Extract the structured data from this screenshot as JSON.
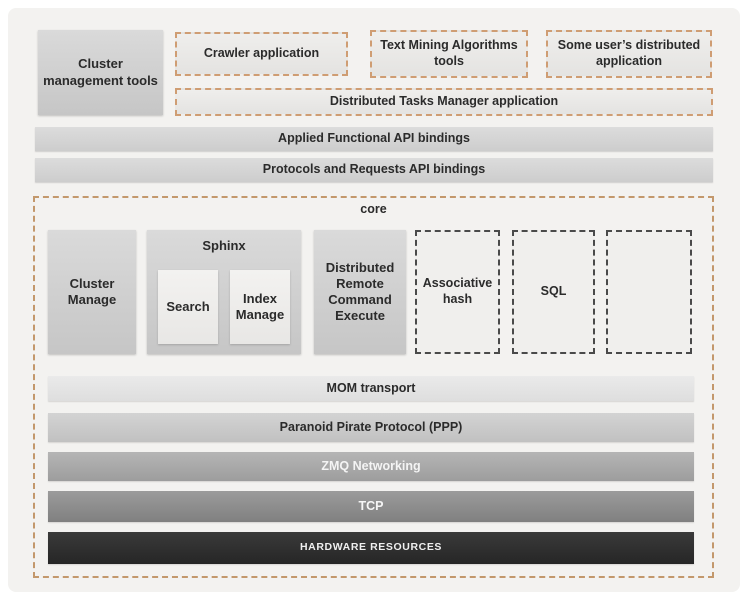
{
  "colors": {
    "panel_bg": "#f3f2f0",
    "dashed_accent_orange": "#cf9d73",
    "dashed_dark": "#4a4a4a",
    "solid_box_gray": "#cecece",
    "layer_mom": "#e4e4e4",
    "layer_ppp": "#c9c9c9",
    "layer_zmq": "#a9a9a9",
    "layer_tcp": "#8c8c8c",
    "layer_hardware": "#2d2d2d",
    "text_dark": "#2b2b2b",
    "text_light": "#f4f4f4"
  },
  "applications": {
    "cluster_management": "Cluster management tools",
    "crawler": "Crawler application",
    "text_mining": "Text Mining Algorithms tools",
    "user_distributed": "Some user’s distributed application",
    "tasks_manager": "Distributed Tasks Manager application"
  },
  "api_layers": {
    "applied": "Applied Functional API bindings",
    "protocols": "Protocols and Requests API bindings"
  },
  "core": {
    "title": "core",
    "modules": {
      "cluster_manage": "Cluster Manage",
      "sphinx": "Sphinx",
      "search": "Search",
      "index_manage": "Index Manage",
      "drce": "Distributed Remote Command Execute",
      "associative_hash": "Associative hash",
      "sql": "SQL"
    },
    "stack": [
      {
        "label": "MOM transport"
      },
      {
        "label": "Paranoid Pirate Protocol (PPP)"
      },
      {
        "label": "ZMQ Networking"
      },
      {
        "label": "TCP"
      },
      {
        "label": "HARDWARE RESOURCES"
      }
    ]
  }
}
